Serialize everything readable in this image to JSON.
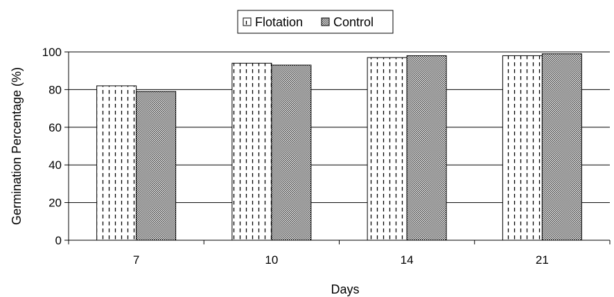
{
  "chart_data": {
    "type": "bar",
    "categories": [
      "7",
      "10",
      "14",
      "21"
    ],
    "series": [
      {
        "name": "Flotation",
        "values": [
          82,
          94,
          97,
          98
        ],
        "pattern": "dashed-vertical"
      },
      {
        "name": "Control",
        "values": [
          79,
          93,
          98,
          99
        ],
        "pattern": "checker"
      }
    ],
    "title": "",
    "xlabel": "Days",
    "ylabel": "Germination Percentage (%)",
    "ylim": [
      0,
      100
    ],
    "yticks": [
      0,
      20,
      40,
      60,
      80,
      100
    ],
    "grid": true,
    "legend_position": "top-center"
  }
}
